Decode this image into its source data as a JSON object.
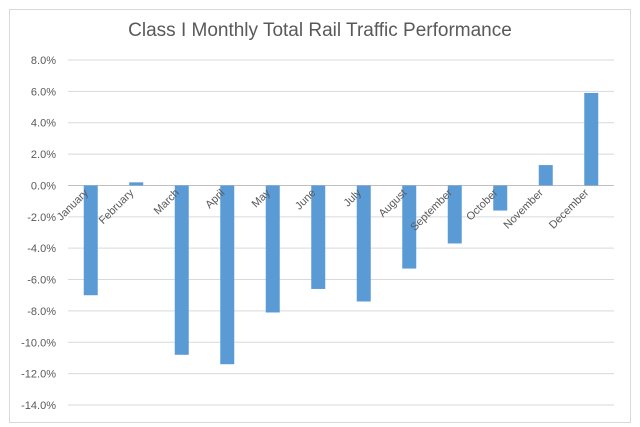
{
  "chart_data": {
    "type": "bar",
    "title": "Class I Monthly Total Rail Traffic Performance",
    "xlabel": "",
    "ylabel": "",
    "categories": [
      "January",
      "February",
      "March",
      "April",
      "May",
      "June",
      "July",
      "August",
      "September",
      "October",
      "November",
      "December"
    ],
    "values": [
      -7.0,
      0.2,
      -10.8,
      -11.4,
      -8.1,
      -6.6,
      -7.4,
      -5.3,
      -3.7,
      -1.6,
      1.3,
      5.9
    ],
    "ylim": [
      -14,
      8
    ],
    "yticks": [
      8,
      6,
      4,
      2,
      0,
      -2,
      -4,
      -6,
      -8,
      -10,
      -12,
      -14
    ],
    "ytick_labels": [
      "8.0%",
      "6.0%",
      "4.0%",
      "2.0%",
      "0.0%",
      "-2.0%",
      "-4.0%",
      "-6.0%",
      "-8.0%",
      "-10.0%",
      "-12.0%",
      "-14.0%"
    ],
    "grid": true,
    "legend": "none",
    "bar_color": "#5b9bd5"
  }
}
